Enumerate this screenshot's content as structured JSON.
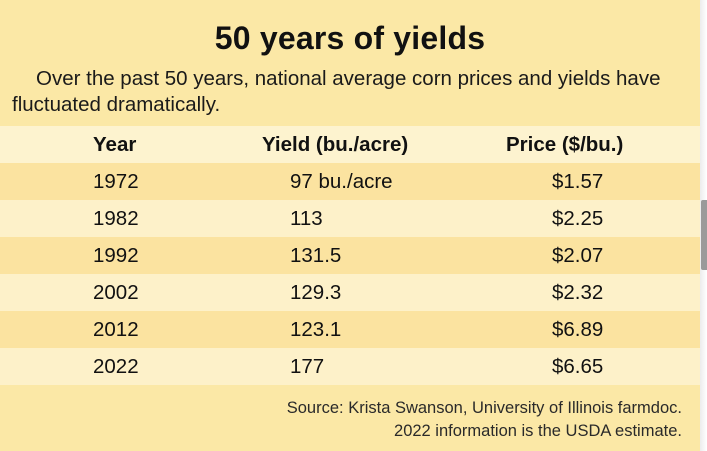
{
  "title": "50 years of yields",
  "subtitle": "Over the past 50 years, national average corn prices and yields have fluctuated dramatically.",
  "colors": {
    "background": "#fbe8a6",
    "row_dark": "#fbe3a0",
    "row_light": "#fdf1c9"
  },
  "chart_data": {
    "type": "table",
    "title": "50 years of yields",
    "columns": [
      "Year",
      "Yield (bu./acre)",
      "Price ($/bu.)"
    ],
    "rows": [
      [
        "1972",
        "97 bu./acre",
        "$1.57"
      ],
      [
        "1982",
        "113",
        "$2.25"
      ],
      [
        "1992",
        "131.5",
        "$2.07"
      ],
      [
        "2002",
        "129.3",
        "$2.32"
      ],
      [
        "2012",
        "123.1",
        "$6.89"
      ],
      [
        "2022",
        "177",
        "$6.65"
      ]
    ]
  },
  "source": {
    "line1": "Source: Krista Swanson, University of Illinois farmdoc.",
    "line2": "2022 information is the USDA estimate."
  }
}
